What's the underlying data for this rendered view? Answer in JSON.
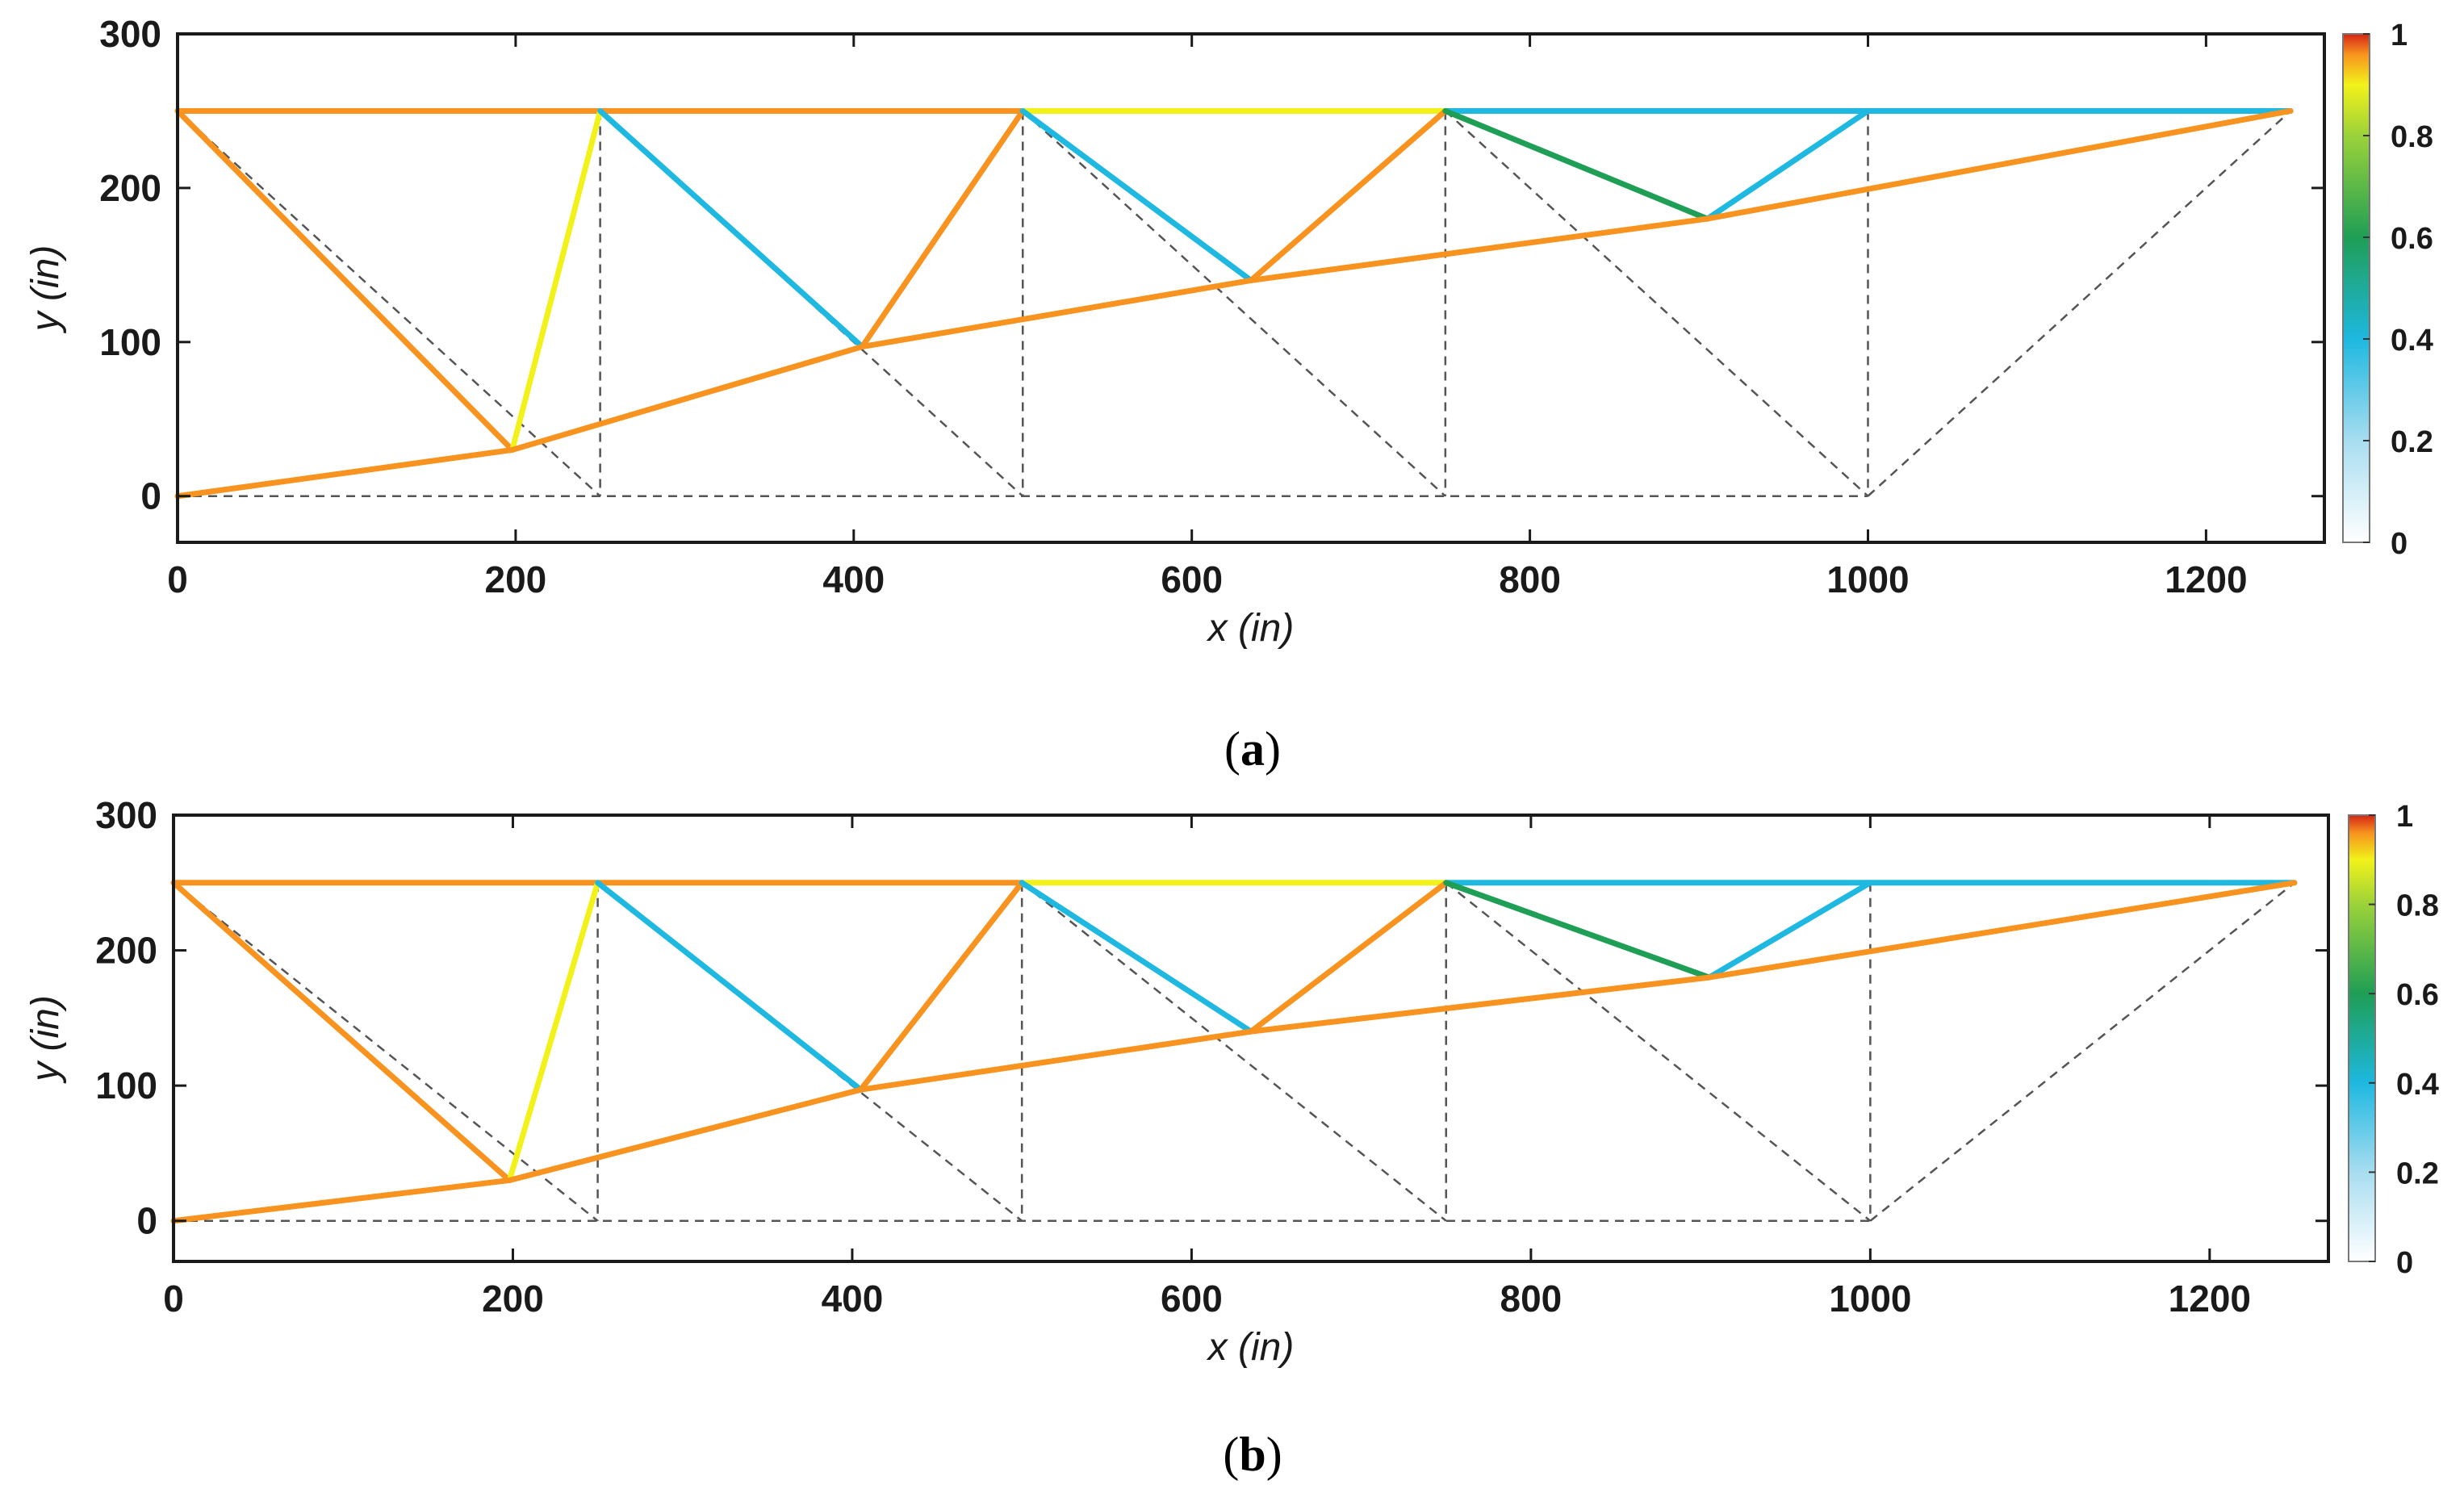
{
  "colors": {
    "orange": "#F7931E",
    "yellow": "#F2F21A",
    "cyan": "#1EB8E0",
    "green": "#1F9E55",
    "ground": "#555555",
    "axis": "#1a1a1a"
  },
  "chart_data": [
    {
      "type": "scatter",
      "panel": "a",
      "caption_open": "(",
      "caption_letter": "a",
      "caption_close": ")",
      "title": "",
      "xlabel": "x (in)",
      "ylabel": "y (in)",
      "xlim": [
        0,
        1270
      ],
      "ylim": [
        -30,
        300
      ],
      "xticks": [
        0,
        200,
        400,
        600,
        800,
        1000,
        1200
      ],
      "xtick_labels": [
        "0",
        "200",
        "400",
        "600",
        "800",
        "1000",
        "1200"
      ],
      "yticks": [
        0,
        100,
        200,
        300
      ],
      "ytick_labels": [
        "0",
        "100",
        "200",
        "300"
      ],
      "colorbar": {
        "range": [
          0,
          1
        ],
        "ticks": [
          0,
          0.2,
          0.4,
          0.6,
          0.8,
          1
        ],
        "tick_labels": [
          "0",
          "0.2",
          "0.4",
          "0.6",
          "0.8",
          "1"
        ]
      },
      "ground_structure": [
        [
          [
            0,
            250
          ],
          [
            1250,
            250
          ]
        ],
        [
          [
            0,
            0
          ],
          [
            1000,
            0
          ]
        ],
        [
          [
            0,
            250
          ],
          [
            250,
            0
          ]
        ],
        [
          [
            250,
            250
          ],
          [
            250,
            0
          ]
        ],
        [
          [
            250,
            250
          ],
          [
            500,
            0
          ]
        ],
        [
          [
            500,
            250
          ],
          [
            500,
            0
          ]
        ],
        [
          [
            500,
            250
          ],
          [
            750,
            0
          ]
        ],
        [
          [
            750,
            250
          ],
          [
            750,
            0
          ]
        ],
        [
          [
            750,
            250
          ],
          [
            1000,
            0
          ]
        ],
        [
          [
            1000,
            250
          ],
          [
            1000,
            0
          ]
        ],
        [
          [
            1000,
            0
          ],
          [
            1250,
            250
          ]
        ]
      ],
      "members": [
        {
          "from": [
            0,
            250
          ],
          "to": [
            500,
            250
          ],
          "color": "orange",
          "value": 0.95
        },
        {
          "from": [
            500,
            250
          ],
          "to": [
            750,
            250
          ],
          "color": "yellow",
          "value": 0.85
        },
        {
          "from": [
            750,
            250
          ],
          "to": [
            1250,
            250
          ],
          "color": "cyan",
          "value": 0.4
        },
        {
          "from": [
            0,
            250
          ],
          "to": [
            198,
            30
          ],
          "color": "orange",
          "value": 0.95
        },
        {
          "from": [
            198,
            30
          ],
          "to": [
            250,
            250
          ],
          "color": "yellow",
          "value": 0.85
        },
        {
          "from": [
            250,
            250
          ],
          "to": [
            405,
            97
          ],
          "color": "cyan",
          "value": 0.4
        },
        {
          "from": [
            405,
            97
          ],
          "to": [
            500,
            250
          ],
          "color": "orange",
          "value": 0.95
        },
        {
          "from": [
            500,
            250
          ],
          "to": [
            635,
            140
          ],
          "color": "cyan",
          "value": 0.4
        },
        {
          "from": [
            635,
            140
          ],
          "to": [
            750,
            250
          ],
          "color": "orange",
          "value": 0.95
        },
        {
          "from": [
            750,
            250
          ],
          "to": [
            905,
            180
          ],
          "color": "green",
          "value": 0.65
        },
        {
          "from": [
            905,
            180
          ],
          "to": [
            1000,
            250
          ],
          "color": "cyan",
          "value": 0.4
        },
        {
          "from": [
            0,
            0
          ],
          "to": [
            198,
            30
          ],
          "color": "orange",
          "value": 0.95
        },
        {
          "from": [
            198,
            30
          ],
          "to": [
            405,
            97
          ],
          "color": "orange",
          "value": 0.95
        },
        {
          "from": [
            405,
            97
          ],
          "to": [
            635,
            140
          ],
          "color": "orange",
          "value": 0.95
        },
        {
          "from": [
            635,
            140
          ],
          "to": [
            905,
            180
          ],
          "color": "orange",
          "value": 0.95
        },
        {
          "from": [
            905,
            180
          ],
          "to": [
            1250,
            250
          ],
          "color": "orange",
          "value": 0.95
        }
      ]
    },
    {
      "type": "scatter",
      "panel": "b",
      "caption_open": "(",
      "caption_letter": "b",
      "caption_close": ")",
      "title": "",
      "xlabel": "x (in)",
      "ylabel": "y (in)",
      "xlim": [
        0,
        1270
      ],
      "ylim": [
        -30,
        300
      ],
      "xticks": [
        0,
        200,
        400,
        600,
        800,
        1000,
        1200
      ],
      "xtick_labels": [
        "0",
        "200",
        "400",
        "600",
        "800",
        "1000",
        "1200"
      ],
      "yticks": [
        0,
        100,
        200,
        300
      ],
      "ytick_labels": [
        "0",
        "100",
        "200",
        "300"
      ],
      "colorbar": {
        "range": [
          0,
          1
        ],
        "ticks": [
          0,
          0.2,
          0.4,
          0.6,
          0.8,
          1
        ],
        "tick_labels": [
          "0",
          "0.2",
          "0.4",
          "0.6",
          "0.8",
          "1"
        ]
      },
      "ground_structure": [
        [
          [
            0,
            250
          ],
          [
            1250,
            250
          ]
        ],
        [
          [
            0,
            0
          ],
          [
            1000,
            0
          ]
        ],
        [
          [
            0,
            250
          ],
          [
            250,
            0
          ]
        ],
        [
          [
            250,
            250
          ],
          [
            250,
            0
          ]
        ],
        [
          [
            250,
            250
          ],
          [
            500,
            0
          ]
        ],
        [
          [
            500,
            250
          ],
          [
            500,
            0
          ]
        ],
        [
          [
            500,
            250
          ],
          [
            750,
            0
          ]
        ],
        [
          [
            750,
            250
          ],
          [
            750,
            0
          ]
        ],
        [
          [
            750,
            250
          ],
          [
            1000,
            0
          ]
        ],
        [
          [
            1000,
            250
          ],
          [
            1000,
            0
          ]
        ],
        [
          [
            1000,
            0
          ],
          [
            1250,
            250
          ]
        ]
      ],
      "members": [
        {
          "from": [
            0,
            250
          ],
          "to": [
            500,
            250
          ],
          "color": "orange",
          "value": 0.95
        },
        {
          "from": [
            500,
            250
          ],
          "to": [
            750,
            250
          ],
          "color": "yellow",
          "value": 0.85
        },
        {
          "from": [
            750,
            250
          ],
          "to": [
            1250,
            250
          ],
          "color": "cyan",
          "value": 0.4
        },
        {
          "from": [
            0,
            250
          ],
          "to": [
            198,
            30
          ],
          "color": "orange",
          "value": 0.95
        },
        {
          "from": [
            198,
            30
          ],
          "to": [
            250,
            250
          ],
          "color": "yellow",
          "value": 0.85
        },
        {
          "from": [
            250,
            250
          ],
          "to": [
            405,
            97
          ],
          "color": "cyan",
          "value": 0.4
        },
        {
          "from": [
            405,
            97
          ],
          "to": [
            500,
            250
          ],
          "color": "orange",
          "value": 0.95
        },
        {
          "from": [
            500,
            250
          ],
          "to": [
            635,
            140
          ],
          "color": "cyan",
          "value": 0.4
        },
        {
          "from": [
            635,
            140
          ],
          "to": [
            750,
            250
          ],
          "color": "orange",
          "value": 0.95
        },
        {
          "from": [
            750,
            250
          ],
          "to": [
            905,
            180
          ],
          "color": "green",
          "value": 0.65
        },
        {
          "from": [
            905,
            180
          ],
          "to": [
            1000,
            250
          ],
          "color": "cyan",
          "value": 0.4
        },
        {
          "from": [
            0,
            0
          ],
          "to": [
            198,
            30
          ],
          "color": "orange",
          "value": 0.95
        },
        {
          "from": [
            198,
            30
          ],
          "to": [
            405,
            97
          ],
          "color": "orange",
          "value": 0.95
        },
        {
          "from": [
            405,
            97
          ],
          "to": [
            635,
            140
          ],
          "color": "orange",
          "value": 0.95
        },
        {
          "from": [
            635,
            140
          ],
          "to": [
            905,
            180
          ],
          "color": "orange",
          "value": 0.95
        },
        {
          "from": [
            905,
            180
          ],
          "to": [
            1250,
            250
          ],
          "color": "orange",
          "value": 0.95
        }
      ]
    }
  ]
}
